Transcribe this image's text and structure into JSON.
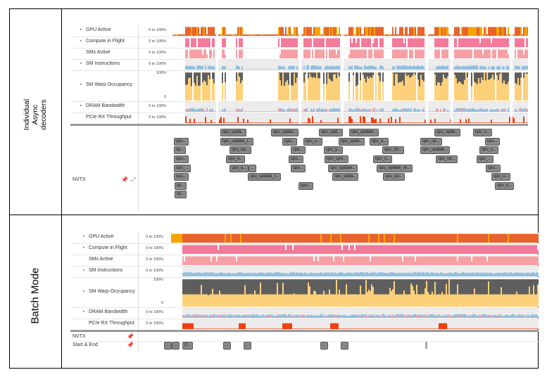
{
  "panels": [
    {
      "side_label": [
        "Individual",
        "Async",
        "decoders"
      ],
      "rows": [
        {
          "label": "GPU Active",
          "range": "0 to 100%",
          "expand": true
        },
        {
          "label": "Compute in Flight",
          "range": "0 to 100%",
          "expand": true
        },
        {
          "label": "SMs Active",
          "range": "0 to 100%",
          "expand": false
        },
        {
          "label": "SM Instructions",
          "range": "0 to 100%",
          "expand": true
        },
        {
          "label": "SM Warp Occupancy",
          "range_top": "100%",
          "range_bottom": "0",
          "expand": true
        },
        {
          "label": "DRAM Bandwidth",
          "range": "0 to 100%",
          "expand": true
        },
        {
          "label": "PCIe RX Throughput",
          "range": "0 to 100%",
          "expand": false
        }
      ],
      "nvtx_label": "NVTX",
      "nvtx_boxes": [
        "cpu_upda...",
        "cpu_updat...",
        "cpu_upd...",
        "cpu_update...",
        "cpu_upda...",
        "cpu_u...",
        "cpu...",
        "cpu_update_r...",
        "cpu...",
        "cpu_u...",
        "cpu_upda...",
        "cpu_u...",
        "cpu_up...",
        "cpu...",
        "cp...",
        "cpu_up...",
        "cpu...",
        "cpu_u...",
        "cpu_up...",
        "cpu_update...",
        "cpu_u...",
        "cpu...",
        "cpu_u...",
        "cpu...",
        "cpu_upd...",
        "cpu_u...",
        "cpu_up...",
        "cpu_...",
        "cpu_...",
        "cpu_u...",
        "...",
        "cpu...",
        "cpu_update...",
        "cpu_update_re...",
        "cpu...",
        "cpu...",
        "cpu_update_r...",
        "cpu_upda...",
        "cpu_up...",
        "cpu_u...",
        "cp...",
        "cpu...",
        "cpu_u...",
        "cp..."
      ]
    },
    {
      "side_label": [
        "Batch Mode"
      ],
      "rows": [
        {
          "label": "GPU Active",
          "range": "0 to 100%",
          "expand": true
        },
        {
          "label": "Compute in Flight",
          "range": "0 to 100%",
          "expand": true
        },
        {
          "label": "SMs Active",
          "range": "0 to 100%",
          "expand": false
        },
        {
          "label": "SM Instructions",
          "range": "0 to 100%",
          "expand": true
        },
        {
          "label": "SM Warp Occupancy",
          "range_top": "100%",
          "range_bottom": "0",
          "expand": true
        },
        {
          "label": "DRAM Bandwidth",
          "range": "0 to 100%",
          "expand": true
        },
        {
          "label": "PCIe RX Throughput",
          "range": "0 to 100%",
          "expand": false
        }
      ],
      "nvtx_label": "NVTX",
      "start_end_label": "Start & End",
      "start_end_boxes": [
        "...",
        "...",
        "C...",
        "...",
        "...",
        "...",
        "..."
      ]
    }
  ],
  "colors": {
    "gpu_active": "#e8642c",
    "gpu_active_alt": "#f5a500",
    "compute": "#f27a9a",
    "sms": "#f6a0a6",
    "instr": "#93c0de",
    "warp_dark": "#5e5e5e",
    "warp_light": "#fdd07a",
    "dram_pink": "#f0a0a8",
    "pcie": "#f04010",
    "track_bg": "#ececec"
  }
}
